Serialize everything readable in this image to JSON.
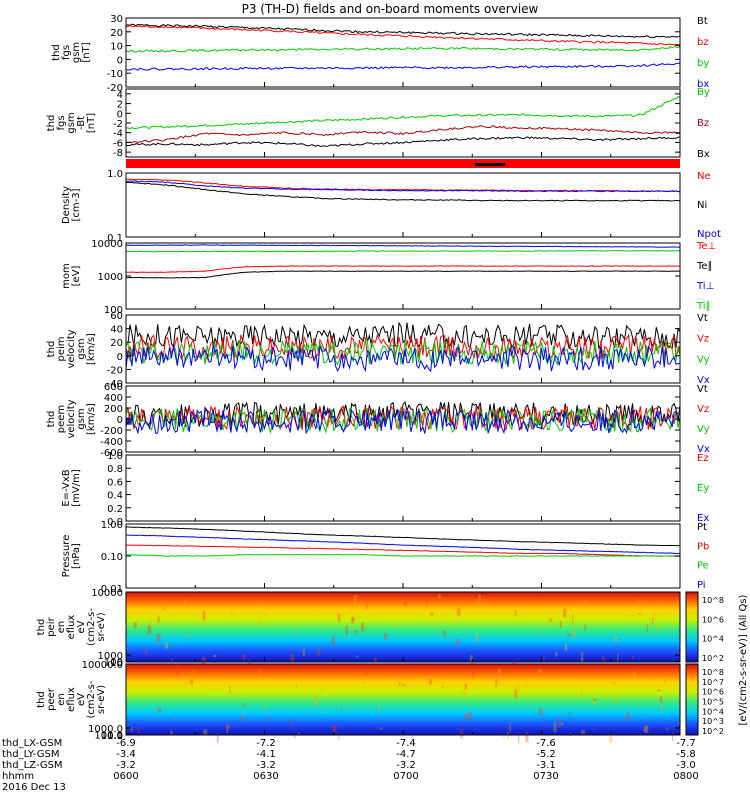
{
  "title": "P3 (TH-D) fields and on-board moments overview",
  "date_text": "2016 Dec 13",
  "chart_data": [
    {
      "type": "line",
      "ylabel": [
        "thd",
        "fgs",
        "gsm",
        "[nT]"
      ],
      "ylim": [
        -20,
        30
      ],
      "yticks": [
        "30",
        "20",
        "10",
        "0",
        "-10",
        "-20"
      ],
      "yticks_at": [
        30,
        20,
        10,
        0,
        -10,
        -20
      ],
      "series": [
        {
          "name": "Bt",
          "color": "#000000",
          "values": [
            25,
            24.5,
            24,
            23,
            22,
            21,
            20,
            19.5,
            19,
            18.5,
            18,
            17.5,
            17,
            16.5,
            16.5
          ]
        },
        {
          "name": "bz",
          "color": "#ff0000",
          "values": [
            24,
            23.5,
            22.5,
            21.5,
            20.5,
            19,
            18,
            17,
            16,
            15,
            14,
            13,
            12.5,
            11.5,
            10.5
          ]
        },
        {
          "name": "by",
          "color": "#00cc00",
          "values": [
            6,
            6.2,
            6.5,
            6.8,
            7,
            7.2,
            7.5,
            7.8,
            8,
            7.8,
            7.5,
            7.2,
            7,
            7,
            9
          ]
        },
        {
          "name": "bx",
          "color": "#0000ff",
          "values": [
            -7,
            -7,
            -6.8,
            -6.5,
            -6.5,
            -6.3,
            -6.2,
            -6,
            -6,
            -5.8,
            -5.5,
            -5.2,
            -5,
            -4.5,
            -3
          ]
        }
      ]
    },
    {
      "type": "line",
      "ylabel": [
        "thd",
        "fgs",
        "gsm",
        "-Bt",
        "[nT]"
      ],
      "ylim": [
        -9,
        5
      ],
      "yticks": [
        "4",
        "2",
        "0",
        "-2",
        "-4",
        "-6",
        "-8"
      ],
      "yticks_at": [
        4,
        2,
        0,
        -2,
        -4,
        -6,
        -8
      ],
      "series": [
        {
          "name": "By",
          "color": "#00cc00",
          "values": [
            -3,
            -2.8,
            -2.5,
            -2.2,
            -1.8,
            -1.5,
            -1.2,
            -0.8,
            -0.5,
            -0.4,
            -0.3,
            -0.5,
            -0.6,
            -0.4,
            3.5
          ]
        },
        {
          "name": "Bz",
          "color": "#aa0000",
          "values": [
            -6,
            -5.5,
            -4.2,
            -4.5,
            -4,
            -4.4,
            -3.8,
            -4.2,
            -3.3,
            -2.7,
            -3,
            -3.2,
            -3.5,
            -4,
            -4
          ]
        },
        {
          "name": "Bx",
          "color": "#000000",
          "values": [
            -6.5,
            -6.3,
            -6.5,
            -6,
            -6.2,
            -6.8,
            -6.3,
            -6,
            -5.5,
            -5.2,
            -5,
            -5.2,
            -5.5,
            -5.2,
            -5
          ]
        }
      ]
    },
    {
      "type": "line",
      "log": true,
      "ylabel": [
        "Density",
        "[cm-3]"
      ],
      "ylim": [
        0.1,
        1.0
      ],
      "yticks": [
        "1.0",
        "0.1"
      ],
      "yticks_at": [
        1.0,
        0.1
      ],
      "series": [
        {
          "name": "Ne",
          "color": "#ff0000",
          "values": [
            0.8,
            0.78,
            0.7,
            0.62,
            0.58,
            0.56,
            0.55,
            0.55,
            0.54,
            0.54,
            0.53,
            0.53,
            0.53,
            0.52,
            0.52
          ]
        },
        {
          "name": "Ni",
          "color": "#000000",
          "values": [
            0.72,
            0.65,
            0.55,
            0.47,
            0.43,
            0.4,
            0.39,
            0.38,
            0.38,
            0.37,
            0.37,
            0.37,
            0.37,
            0.37,
            0.37
          ]
        },
        {
          "name": "Npot",
          "color": "#0000ff",
          "values": [
            0.75,
            0.72,
            0.63,
            0.58,
            0.56,
            0.55,
            0.54,
            0.53,
            0.53,
            0.53,
            0.52,
            0.52,
            0.52,
            0.52,
            0.52
          ]
        }
      ]
    },
    {
      "type": "line",
      "log": true,
      "ylabel": [
        "mom",
        "[eV]"
      ],
      "ylim": [
        100,
        10000
      ],
      "yticks": [
        "10000",
        "1000",
        "100"
      ],
      "yticks_at": [
        10000,
        1000,
        100
      ],
      "series": [
        {
          "name": "Te⊥",
          "color": "#ff0000",
          "values": [
            1300,
            1300,
            1400,
            1900,
            2000,
            2000,
            2000,
            2000,
            2000,
            2000,
            2000,
            2000,
            2000,
            2000,
            2000
          ]
        },
        {
          "name": "Te∥",
          "color": "#000000",
          "values": [
            900,
            880,
            900,
            1300,
            1400,
            1400,
            1400,
            1400,
            1400,
            1400,
            1400,
            1400,
            1400,
            1400,
            1400
          ]
        },
        {
          "name": "Ti⊥",
          "color": "#0000ff",
          "values": [
            8500,
            8600,
            8700,
            8600,
            8500,
            8400,
            8300,
            8200,
            8100,
            8000,
            7900,
            7800,
            7700,
            7600,
            7500
          ]
        },
        {
          "name": "Ti∥",
          "color": "#00cc00",
          "values": [
            5500,
            5500,
            5500,
            5600,
            5600,
            5600,
            5700,
            5700,
            5700,
            5700,
            5700,
            5800,
            5800,
            5800,
            5800
          ]
        }
      ]
    },
    {
      "type": "line",
      "ylabel": [
        "thd",
        "peim",
        "velocity",
        "gsm",
        "[km/s]"
      ],
      "ylim": [
        -40,
        60
      ],
      "yticks": [
        "60",
        "40",
        "20",
        "0",
        "-20",
        "-40"
      ],
      "yticks_at": [
        60,
        40,
        20,
        0,
        -20,
        -40
      ],
      "series": [
        {
          "name": "Vt",
          "color": "#000000",
          "values": [
            28,
            30,
            27,
            29,
            31,
            28,
            30,
            32,
            29,
            28,
            30,
            27,
            29,
            28,
            27
          ]
        },
        {
          "name": "Vz",
          "color": "#ff0000",
          "values": [
            12,
            13,
            11,
            14,
            12,
            13,
            12,
            14,
            13,
            12,
            11,
            13,
            12,
            13,
            12
          ]
        },
        {
          "name": "Vy",
          "color": "#00cc00",
          "values": [
            5,
            6,
            4,
            5,
            3,
            4,
            5,
            4,
            5,
            6,
            4,
            5,
            4,
            5,
            4
          ]
        },
        {
          "name": "Vx",
          "color": "#0000ff",
          "values": [
            -2,
            -3,
            -1,
            -4,
            -5,
            -3,
            -6,
            -4,
            -5,
            -3,
            -4,
            -5,
            -3,
            -4,
            -3
          ]
        }
      ]
    },
    {
      "type": "line",
      "ylabel": [
        "thd",
        "peem",
        "velocity",
        "gsm",
        "[km/s]"
      ],
      "ylim": [
        -600,
        600
      ],
      "yticks": [
        "600",
        "400",
        "200",
        "0",
        "-200",
        "-400",
        "-600"
      ],
      "yticks_at": [
        600,
        400,
        200,
        0,
        -200,
        -400,
        -600
      ],
      "series": [
        {
          "name": "Vt",
          "color": "#000000",
          "values": [
            60,
            70,
            80,
            90,
            85,
            80,
            90,
            100,
            95,
            90,
            85,
            80,
            85,
            80,
            75
          ]
        },
        {
          "name": "Vz",
          "color": "#ff0000",
          "values": [
            10,
            15,
            20,
            15,
            10,
            20,
            15,
            10,
            15,
            20,
            10,
            15,
            10,
            15,
            10
          ]
        },
        {
          "name": "Vy",
          "color": "#00cc00",
          "values": [
            -20,
            -25,
            -15,
            -30,
            -20,
            -25,
            -20,
            -15,
            -25,
            -20,
            -30,
            -20,
            -25,
            -20,
            -15
          ]
        },
        {
          "name": "Vx",
          "color": "#0000ff",
          "values": [
            -40,
            -45,
            -50,
            -40,
            -55,
            -45,
            -50,
            -60,
            -45,
            -50,
            -40,
            -45,
            -50,
            -45,
            -40
          ]
        }
      ]
    },
    {
      "type": "line",
      "ylabel": [
        "E=-VxB",
        "[mV/m]"
      ],
      "ylim": [
        0,
        1.0
      ],
      "yticks": [
        "1.0",
        "0.8",
        "0.6",
        "0.4",
        "0.2",
        "0.0"
      ],
      "yticks_at": [
        1.0,
        0.8,
        0.6,
        0.4,
        0.2,
        0.0
      ],
      "series": [
        {
          "name": "Ez",
          "color": "#ff0000",
          "values": []
        },
        {
          "name": "Ey",
          "color": "#00cc00",
          "values": []
        },
        {
          "name": "Ex",
          "color": "#0000ff",
          "values": []
        }
      ]
    },
    {
      "type": "line",
      "log": true,
      "ylabel": [
        "Pressure",
        "[nPa]"
      ],
      "ylim": [
        0.01,
        1.0
      ],
      "yticks": [
        "1.00",
        "0.10",
        "0.01"
      ],
      "yticks_at": [
        1.0,
        0.1,
        0.01
      ],
      "series": [
        {
          "name": "Pt",
          "color": "#000000",
          "values": [
            0.8,
            0.75,
            0.68,
            0.6,
            0.52,
            0.46,
            0.42,
            0.38,
            0.34,
            0.31,
            0.28,
            0.26,
            0.24,
            0.22,
            0.21
          ]
        },
        {
          "name": "Pb",
          "color": "#ff0000",
          "values": [
            0.22,
            0.21,
            0.2,
            0.19,
            0.18,
            0.17,
            0.16,
            0.15,
            0.14,
            0.13,
            0.12,
            0.12,
            0.11,
            0.1,
            0.1
          ]
        },
        {
          "name": "Pe",
          "color": "#00cc00",
          "values": [
            0.11,
            0.1,
            0.1,
            0.11,
            0.11,
            0.11,
            0.11,
            0.1,
            0.1,
            0.1,
            0.1,
            0.1,
            0.1,
            0.1,
            0.1
          ]
        },
        {
          "name": "Pi",
          "color": "#0000ff",
          "values": [
            0.45,
            0.42,
            0.38,
            0.34,
            0.31,
            0.28,
            0.25,
            0.22,
            0.2,
            0.18,
            0.16,
            0.15,
            0.14,
            0.13,
            0.12
          ]
        }
      ]
    },
    {
      "type": "heatmap",
      "ylabel": [
        "thd",
        "peir",
        "en",
        "eflux",
        "eV",
        "(cm2-s-",
        "sr-eV)"
      ],
      "ylim": [
        10,
        10000
      ],
      "yticks": [
        "10000",
        "1000",
        "100",
        "10"
      ],
      "yticks_at": [
        10000,
        1000,
        100,
        10
      ],
      "colorbar_label": "[eV/(cm2-s-sr-eV)] (All Qs)",
      "colorbar_ticks": [
        "10^8",
        "10^6",
        "10^4",
        "10^2"
      ]
    },
    {
      "type": "heatmap",
      "ylabel": [
        "thd",
        "peer",
        "en",
        "eflux",
        "eV",
        "(cm2-s-",
        "sr-eV)"
      ],
      "ylim": [
        0.1,
        10000
      ],
      "yticks": [
        "10000.0",
        "1000.0",
        "100.0",
        "10.0",
        "1.0",
        "0.1"
      ],
      "yticks_at": [
        10000,
        1000,
        100,
        10,
        1,
        0.1
      ],
      "colorbar_label": "[eV/(cm2-s-sr-eV)] (All Qs)",
      "colorbar_ticks": [
        "10^8",
        "10^7",
        "10^6",
        "10^5",
        "10^4",
        "10^3",
        "10^2"
      ]
    }
  ],
  "x_axis": {
    "rows": [
      {
        "label": "thd_LX-GSM",
        "values": [
          "-6.9",
          "-7.2",
          "-7.4",
          "-7.6",
          "-7.7"
        ]
      },
      {
        "label": "thd_LY-GSM",
        "values": [
          "-3.4",
          "-4.1",
          "-4.7",
          "-5.2",
          "-5.8"
        ]
      },
      {
        "label": "thd_LZ-GSM",
        "values": [
          "-3.2",
          "-3.2",
          "-3.2",
          "-3.1",
          "-3.0"
        ]
      },
      {
        "label": "hhmm",
        "values": [
          "0600",
          "0630",
          "0700",
          "0730",
          "0800"
        ]
      }
    ]
  }
}
